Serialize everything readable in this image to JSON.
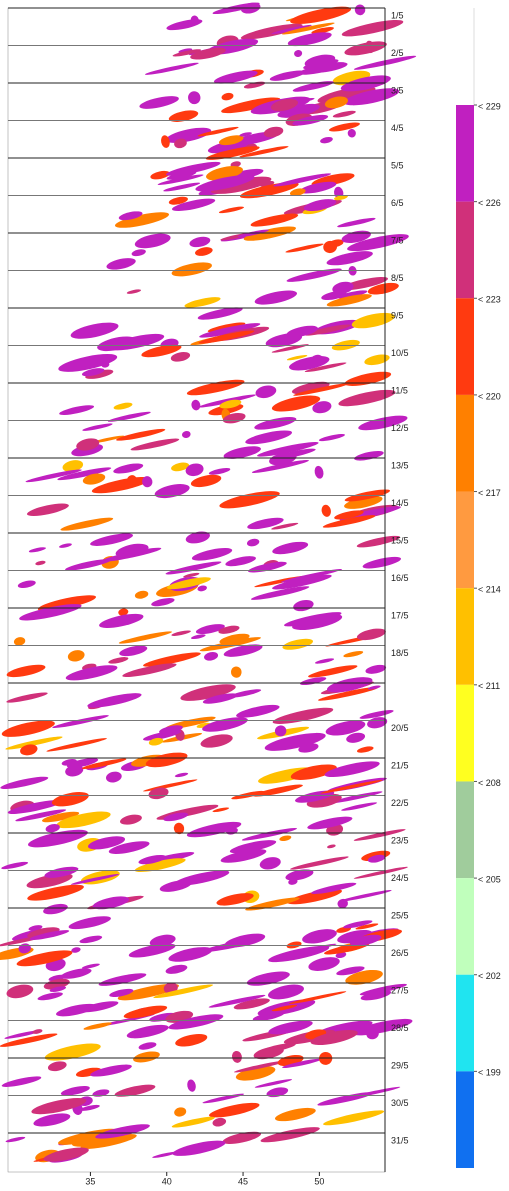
{
  "chart_data": {
    "type": "hovmoller",
    "categories": [
      "1/5",
      "2/5",
      "3/5",
      "4/5",
      "5/5",
      "6/5",
      "7/5",
      "8/5",
      "9/5",
      "10/5",
      "11/5",
      "12/5",
      "13/5",
      "14/5",
      "15/5",
      "16/5",
      "17/5",
      "18/5",
      null,
      "20/5",
      "21/5",
      "22/5",
      "23/5",
      "24/5",
      "25/5",
      "26/5",
      "27/5",
      "28/5",
      "29/5",
      "30/5",
      "31/5"
    ],
    "xlim": [
      29.6,
      54.3
    ],
    "xticks": [
      35,
      40,
      45,
      50
    ],
    "colorbar": {
      "clim": [
        196,
        229
      ],
      "ticks": [
        {
          "value": 229,
          "label": "< 229"
        },
        {
          "value": 226,
          "label": "< 226"
        },
        {
          "value": 223,
          "label": "< 223"
        },
        {
          "value": 220,
          "label": "< 220"
        },
        {
          "value": 217,
          "label": "< 217"
        },
        {
          "value": 214,
          "label": "< 214"
        },
        {
          "value": 211,
          "label": "< 211"
        },
        {
          "value": 208,
          "label": "< 208"
        },
        {
          "value": 205,
          "label": "< 205"
        },
        {
          "value": 202,
          "label": "< 202"
        },
        {
          "value": 199,
          "label": "< 199"
        }
      ],
      "colors": [
        "#c020c0",
        "#d0307a",
        "#ff3a10",
        "#ff8000",
        "#ff9a40",
        "#ffc000",
        "#ffff20",
        "#a0cc9c",
        "#c0ffbc",
        "#20e4f0",
        "#1070f0"
      ]
    }
  }
}
